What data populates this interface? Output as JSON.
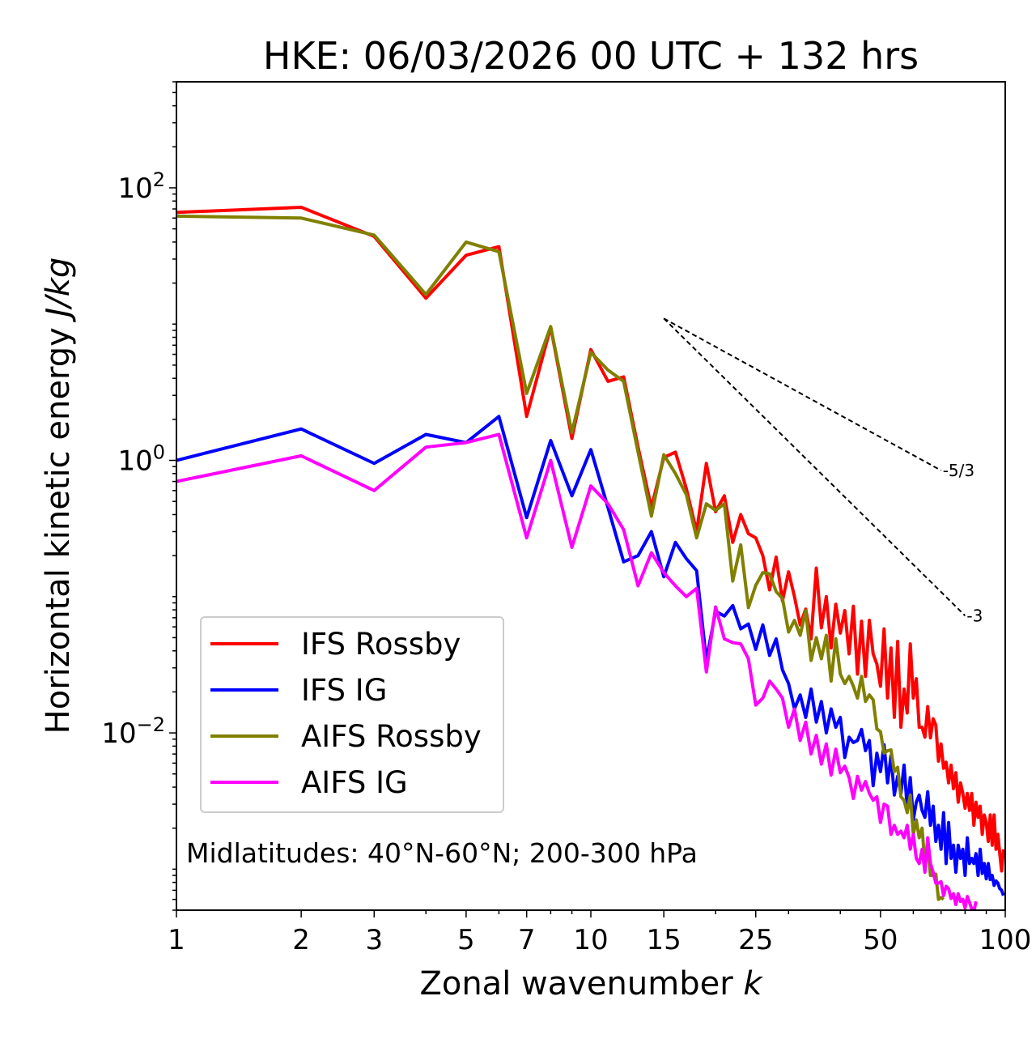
{
  "chart_data": {
    "type": "line",
    "title": "HKE: 06/03/2026 00 UTC + 132 hrs",
    "xlabel": "Zonal wavenumber",
    "xlabel_var": "k",
    "ylabel": "Horizontal kinetic energy",
    "ylabel_unit": "J/kg",
    "xscale": "log",
    "yscale": "log",
    "xlim": [
      1,
      100
    ],
    "ylim": [
      0.0005,
      600
    ],
    "xticks": [
      {
        "value": 1,
        "label": "1"
      },
      {
        "value": 2,
        "label": "2"
      },
      {
        "value": 3,
        "label": "3"
      },
      {
        "value": 5,
        "label": "5"
      },
      {
        "value": 7,
        "label": "7"
      },
      {
        "value": 10,
        "label": "10"
      },
      {
        "value": 15,
        "label": "15"
      },
      {
        "value": 25,
        "label": "25"
      },
      {
        "value": 50,
        "label": "50"
      },
      {
        "value": 100,
        "label": "100"
      }
    ],
    "yticks": [
      {
        "value": 0.01,
        "base": "10",
        "exp": "−2"
      },
      {
        "value": 1,
        "base": "10",
        "exp": "0"
      },
      {
        "value": 100,
        "base": "10",
        "exp": "2"
      }
    ],
    "annotation": "Midlatitudes: 40°N-60°N; 200-300 hPa",
    "legend_position": "lower-left",
    "series": [
      {
        "name": "IFS Rossby",
        "color": "#ff0000",
        "values": [
          66,
          72,
          44,
          15.5,
          32,
          37,
          2.1,
          9.5,
          1.45,
          6.5,
          3.8,
          4.1,
          1.25,
          0.45,
          1.05,
          1.15,
          0.62,
          0.3,
          0.95,
          0.42,
          0.55,
          0.25,
          0.4,
          0.29,
          0.27,
          0.2,
          0.112,
          0.195,
          0.093,
          0.152,
          0.1,
          0.062,
          0.081,
          0.049,
          0.162,
          0.059,
          0.1,
          0.042,
          0.088,
          0.054,
          0.079,
          0.038,
          0.085,
          0.027,
          0.066,
          0.026,
          0.067,
          0.038,
          0.032,
          0.022,
          0.058,
          0.018,
          0.042,
          0.013,
          0.047,
          0.011,
          0.021,
          0.014,
          0.045,
          0.018,
          0.025,
          0.011,
          0.011,
          0.0093,
          0.0156,
          0.0092,
          0.0127,
          0.0114,
          0.0062,
          0.0083,
          0.0055,
          0.0061,
          0.0043,
          0.0058,
          0.0039,
          0.0051,
          0.0031,
          0.0043,
          0.0036,
          0.0028,
          0.0036,
          0.0027,
          0.0036,
          0.0021,
          0.0031,
          0.0024,
          0.0029,
          0.0018,
          0.0025,
          0.0022,
          0.0016,
          0.0025,
          0.0015,
          0.0025,
          0.0014,
          0.0018,
          0.0013,
          0.00097,
          0.0014
        ]
      },
      {
        "name": "IFS IG",
        "color": "#0000ff",
        "values": [
          1.0,
          1.7,
          0.95,
          1.55,
          1.35,
          2.1,
          0.38,
          1.4,
          0.55,
          1.2,
          0.45,
          0.18,
          0.2,
          0.3,
          0.14,
          0.25,
          0.19,
          0.155,
          0.034,
          0.078,
          0.072,
          0.086,
          0.058,
          0.063,
          0.041,
          0.062,
          0.037,
          0.049,
          0.029,
          0.023,
          0.015,
          0.019,
          0.013,
          0.021,
          0.012,
          0.017,
          0.01,
          0.015,
          0.011,
          0.013,
          0.0066,
          0.0093,
          0.0085,
          0.0088,
          0.0106,
          0.0074,
          0.0088,
          0.0041,
          0.0071,
          0.0052,
          0.0082,
          0.0043,
          0.0068,
          0.0035,
          0.0048,
          0.0036,
          0.0058,
          0.0028,
          0.0047,
          0.0023,
          0.0031,
          0.0035,
          0.0027,
          0.0024,
          0.0037,
          0.0021,
          0.0029,
          0.0016,
          0.0021,
          0.0014,
          0.0026,
          0.0011,
          0.0022,
          0.0012,
          0.0015,
          0.00095,
          0.0015,
          0.0012,
          0.0014,
          0.0009,
          0.0017,
          0.0011,
          0.0012,
          0.0011,
          0.0013,
          0.0009,
          0.0014,
          0.00093,
          0.0011,
          0.00085,
          0.0011,
          0.00084,
          0.0009,
          0.00076,
          0.00082,
          0.00079,
          0.00072,
          0.0007,
          0.00064
        ]
      },
      {
        "name": "AIFS Rossby",
        "color": "#808000",
        "values": [
          62,
          60,
          45,
          16.5,
          40,
          34,
          3.1,
          9.6,
          1.6,
          6.2,
          4.6,
          3.8,
          1.15,
          0.39,
          1.1,
          0.8,
          0.56,
          0.27,
          0.48,
          0.43,
          0.48,
          0.13,
          0.24,
          0.083,
          0.121,
          0.15,
          0.147,
          0.109,
          0.097,
          0.055,
          0.067,
          0.052,
          0.079,
          0.034,
          0.05,
          0.035,
          0.052,
          0.024,
          0.049,
          0.027,
          0.023,
          0.026,
          0.022,
          0.018,
          0.026,
          0.017,
          0.019,
          0.0175,
          0.0107,
          0.0102,
          0.0071,
          0.0074,
          0.0075,
          0.0052,
          0.0056,
          0.0034,
          0.0032,
          0.0026,
          0.0035,
          0.0018,
          0.0023,
          0.0017,
          0.002,
          0.0011,
          0.0015,
          0.0009,
          0.0009,
          0.00092,
          0.0006,
          0.00062,
          0.0006
        ]
      },
      {
        "name": "AIFS IG",
        "color": "#ff00ff",
        "values": [
          0.7,
          1.08,
          0.6,
          1.25,
          1.35,
          1.55,
          0.27,
          1.0,
          0.23,
          0.65,
          0.48,
          0.31,
          0.12,
          0.21,
          0.15,
          0.12,
          0.1,
          0.115,
          0.028,
          0.084,
          0.049,
          0.046,
          0.045,
          0.035,
          0.016,
          0.018,
          0.024,
          0.021,
          0.018,
          0.011,
          0.015,
          0.0088,
          0.012,
          0.007,
          0.0096,
          0.0059,
          0.0083,
          0.0049,
          0.0076,
          0.0051,
          0.0057,
          0.0047,
          0.0033,
          0.0048,
          0.0038,
          0.0044,
          0.0036,
          0.0032,
          0.0034,
          0.0022,
          0.003,
          0.0029,
          0.0018,
          0.0021,
          0.0018,
          0.0019,
          0.0017,
          0.0021,
          0.0014,
          0.0018,
          0.0012,
          0.0011,
          0.0014,
          0.00095,
          0.0017,
          0.0011,
          0.00095,
          0.00079,
          0.00079,
          0.00081,
          0.00064,
          0.00075,
          0.00072,
          0.00061,
          0.00066,
          0.00055,
          0.00066,
          0.00058,
          0.0006,
          0.00052,
          0.00063,
          0.00057,
          0.00051,
          0.00049,
          0.00058
        ]
      }
    ],
    "reference_slopes": [
      {
        "label": "-5/3",
        "exponent": -1.6667,
        "x_start": 15,
        "x_end": 70,
        "y_start": 11
      },
      {
        "label": "-3",
        "exponent": -3,
        "x_start": 15,
        "x_end": 80,
        "y_start": 11
      }
    ]
  }
}
